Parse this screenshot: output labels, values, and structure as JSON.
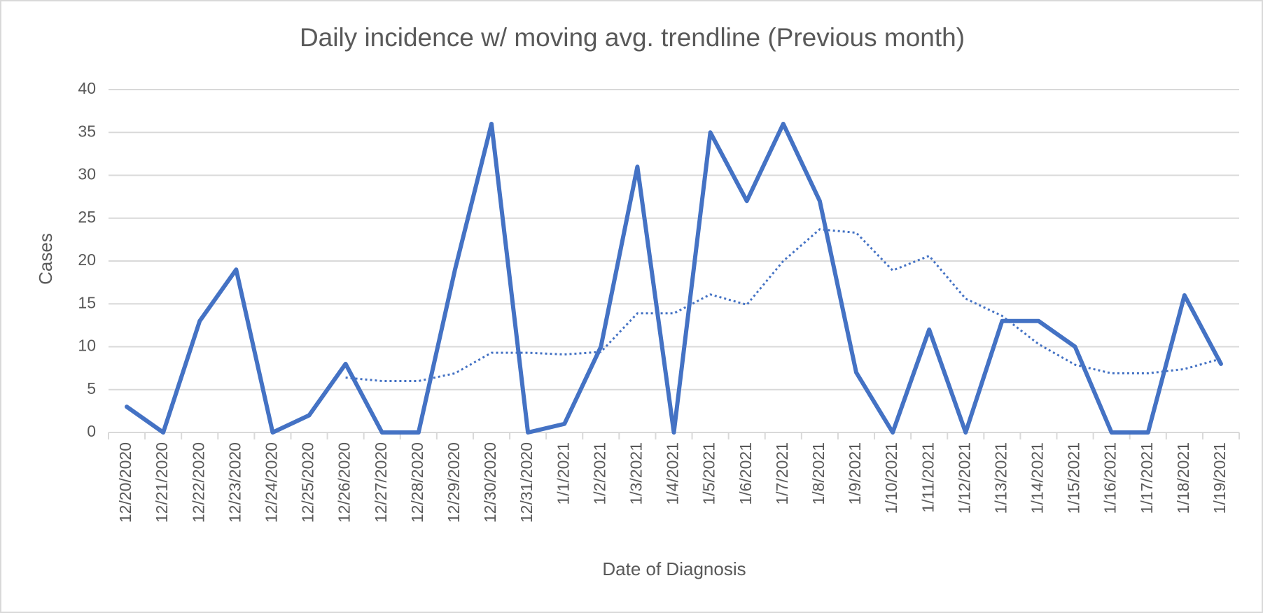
{
  "chart_data": {
    "type": "line",
    "title": "Daily incidence w/ moving avg. trendline (Previous month)",
    "x_label": "Date of Diagnosis",
    "y_label": "Cases",
    "categories": [
      "12/20/2020",
      "12/21/2020",
      "12/22/2020",
      "12/23/2020",
      "12/24/2020",
      "12/25/2020",
      "12/26/2020",
      "12/27/2020",
      "12/28/2020",
      "12/29/2020",
      "12/30/2020",
      "12/31/2020",
      "1/1/2021",
      "1/2/2021",
      "1/3/2021",
      "1/4/2021",
      "1/5/2021",
      "1/6/2021",
      "1/7/2021",
      "1/8/2021",
      "1/9/2021",
      "1/10/2021",
      "1/11/2021",
      "1/12/2021",
      "1/13/2021",
      "1/14/2021",
      "1/15/2021",
      "1/16/2021",
      "1/17/2021",
      "1/18/2021",
      "1/19/2021"
    ],
    "series": [
      {
        "color": "#4472c4",
        "style": "solid",
        "values": [
          3,
          0,
          13,
          19,
          0,
          2,
          8,
          0,
          0,
          19,
          36,
          0,
          1,
          10,
          31,
          0,
          35,
          27,
          36,
          27,
          7,
          0,
          12,
          0,
          13,
          13,
          10,
          0,
          0,
          16,
          8
        ]
      },
      {
        "color": "#4472c4",
        "style": "dotted",
        "values": [
          null,
          null,
          null,
          null,
          null,
          null,
          6.4,
          6,
          6,
          6.9,
          9.3,
          9.3,
          9.1,
          9.4,
          13.9,
          13.9,
          16.1,
          14.9,
          20,
          23.7,
          23.3,
          18.9,
          20.6,
          15.6,
          13.6,
          10.3,
          7.9,
          6.9,
          6.9,
          7.4,
          8.6
        ]
      }
    ],
    "ylim": [
      0,
      40
    ],
    "yticks": [
      0,
      5,
      10,
      15,
      20,
      25,
      30,
      35,
      40
    ],
    "grid": true
  }
}
